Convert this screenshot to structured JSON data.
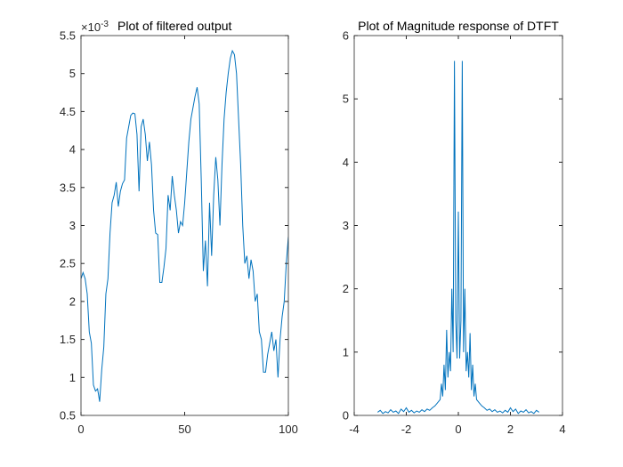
{
  "chart_data": [
    {
      "type": "line",
      "title": "Plot of filtered output",
      "y_exponent": {
        "base": "×10",
        "power": "-3"
      },
      "color": "#0072bd",
      "x": [
        0,
        1,
        2,
        3,
        4,
        5,
        6,
        7,
        8,
        9,
        10,
        11,
        12,
        13,
        14,
        15,
        16,
        17,
        18,
        19,
        20,
        21,
        22,
        23,
        24,
        25,
        26,
        27,
        28,
        29,
        30,
        31,
        32,
        33,
        34,
        35,
        36,
        37,
        38,
        39,
        40,
        41,
        42,
        43,
        44,
        45,
        46,
        47,
        48,
        49,
        50,
        51,
        52,
        53,
        54,
        55,
        56,
        57,
        58,
        59,
        60,
        61,
        62,
        63,
        64,
        65,
        66,
        67,
        68,
        69,
        70,
        71,
        72,
        73,
        74,
        75,
        76,
        77,
        78,
        79,
        80,
        81,
        82,
        83,
        84,
        85,
        86,
        87,
        88,
        89,
        90,
        91,
        92,
        93,
        94,
        95,
        96,
        97,
        98,
        99,
        100
      ],
      "values": [
        2.3,
        2.38,
        2.3,
        2.1,
        1.6,
        1.45,
        0.9,
        0.82,
        0.85,
        0.68,
        1.1,
        1.4,
        2.1,
        2.3,
        2.9,
        3.3,
        3.4,
        3.57,
        3.25,
        3.45,
        3.55,
        3.6,
        4.15,
        4.3,
        4.45,
        4.48,
        4.47,
        4.2,
        3.45,
        4.3,
        4.4,
        4.2,
        3.85,
        4.1,
        3.8,
        3.2,
        2.9,
        2.88,
        2.25,
        2.25,
        2.45,
        2.7,
        3.4,
        3.2,
        3.65,
        3.4,
        3.2,
        2.9,
        3.05,
        3.0,
        3.3,
        3.7,
        4.1,
        4.4,
        4.55,
        4.7,
        4.82,
        4.6,
        3.6,
        2.4,
        2.8,
        2.2,
        3.3,
        2.6,
        3.4,
        3.9,
        3.6,
        3.0,
        3.8,
        4.4,
        4.75,
        5.0,
        5.2,
        5.3,
        5.25,
        5.0,
        4.4,
        3.8,
        3.0,
        2.5,
        2.6,
        2.3,
        2.55,
        2.4,
        2.0,
        2.1,
        1.6,
        1.5,
        1.07,
        1.07,
        1.3,
        1.45,
        1.6,
        1.35,
        1.5,
        1.0,
        1.5,
        1.8,
        2.0,
        2.5,
        2.85
      ],
      "xlim": [
        0,
        100
      ],
      "xticks": [
        0,
        50,
        100
      ],
      "ylim": [
        0.5,
        5.5
      ],
      "yticks": [
        0.5,
        1,
        1.5,
        2,
        2.5,
        3,
        3.5,
        4,
        4.5,
        5,
        5.5
      ]
    },
    {
      "type": "line",
      "title": "Plot of Magnitude response of DTFT",
      "color": "#0072bd",
      "x": [
        -3.1,
        -3.0,
        -2.9,
        -2.8,
        -2.7,
        -2.6,
        -2.5,
        -2.4,
        -2.3,
        -2.2,
        -2.1,
        -2.0,
        -1.9,
        -1.8,
        -1.7,
        -1.6,
        -1.5,
        -1.4,
        -1.3,
        -1.2,
        -1.1,
        -1.0,
        -0.9,
        -0.8,
        -0.7,
        -0.65,
        -0.6,
        -0.55,
        -0.5,
        -0.45,
        -0.4,
        -0.35,
        -0.3,
        -0.25,
        -0.2,
        -0.15,
        -0.1,
        -0.05,
        0,
        0.05,
        0.1,
        0.15,
        0.2,
        0.25,
        0.3,
        0.35,
        0.4,
        0.45,
        0.5,
        0.55,
        0.6,
        0.65,
        0.7,
        0.8,
        0.9,
        1.0,
        1.1,
        1.2,
        1.3,
        1.4,
        1.5,
        1.6,
        1.7,
        1.8,
        1.9,
        2.0,
        2.1,
        2.2,
        2.3,
        2.4,
        2.5,
        2.6,
        2.7,
        2.8,
        2.9,
        3.0,
        3.1
      ],
      "values": [
        0.05,
        0.08,
        0.03,
        0.06,
        0.04,
        0.09,
        0.05,
        0.07,
        0.03,
        0.1,
        0.06,
        0.12,
        0.05,
        0.08,
        0.04,
        0.07,
        0.05,
        0.09,
        0.06,
        0.1,
        0.08,
        0.12,
        0.15,
        0.2,
        0.25,
        0.5,
        0.3,
        0.8,
        0.4,
        1.35,
        0.6,
        1.0,
        0.7,
        2.0,
        1.0,
        5.6,
        1.5,
        0.9,
        3.22,
        0.9,
        1.5,
        5.6,
        1.0,
        2.0,
        0.7,
        1.0,
        0.6,
        1.3,
        0.4,
        0.8,
        0.3,
        0.5,
        0.25,
        0.2,
        0.15,
        0.12,
        0.08,
        0.1,
        0.06,
        0.09,
        0.05,
        0.07,
        0.04,
        0.08,
        0.05,
        0.12,
        0.06,
        0.1,
        0.03,
        0.07,
        0.05,
        0.09,
        0.04,
        0.06,
        0.03,
        0.08,
        0.05
      ],
      "xlim": [
        -4,
        4
      ],
      "xticks": [
        -4,
        -2,
        0,
        2,
        4
      ],
      "ylim": [
        0,
        6
      ],
      "yticks": [
        0,
        1,
        2,
        3,
        4,
        5,
        6
      ]
    }
  ]
}
